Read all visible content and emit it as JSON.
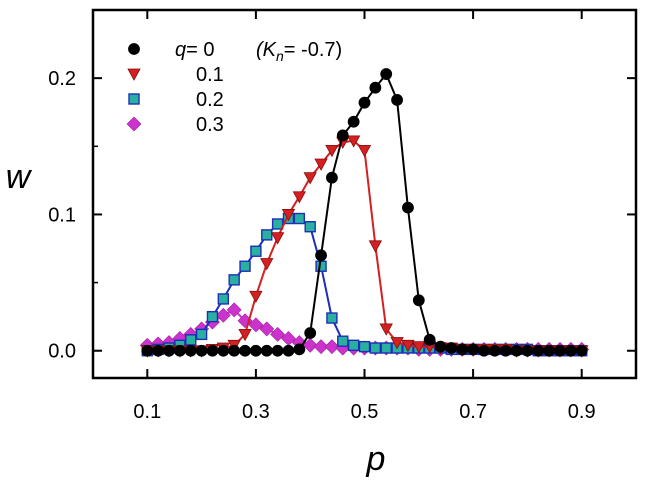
{
  "chart_data": {
    "type": "line",
    "title": "",
    "xlabel": "p",
    "ylabel": "w",
    "xlim": [
      0.0,
      1.0
    ],
    "ylim": [
      -0.02,
      0.25
    ],
    "xticks": [
      0.1,
      0.3,
      0.5,
      0.7,
      0.9
    ],
    "xtick_labels": [
      "0.1",
      "0.3",
      "0.5",
      "0.7",
      "0.9"
    ],
    "yticks": [
      0.0,
      0.1,
      0.2
    ],
    "ytick_labels": [
      "0.0",
      "0.1",
      "0.2"
    ],
    "grid": false,
    "legend_position": "top-left",
    "legend": {
      "q_label": "q",
      "q_eq": "= 0",
      "k_label": "(K",
      "k_sub": "n",
      "k_rest": "= -0.7)"
    },
    "series": [
      {
        "name": "0",
        "label": "",
        "color": "#000000",
        "marker": "circle",
        "x": [
          0.1,
          0.12,
          0.14,
          0.16,
          0.18,
          0.2,
          0.22,
          0.24,
          0.26,
          0.28,
          0.3,
          0.32,
          0.34,
          0.36,
          0.38,
          0.4,
          0.42,
          0.44,
          0.46,
          0.48,
          0.5,
          0.52,
          0.54,
          0.56,
          0.58,
          0.6,
          0.62,
          0.64,
          0.66,
          0.68,
          0.7,
          0.72,
          0.74,
          0.76,
          0.78,
          0.8,
          0.82,
          0.84,
          0.86,
          0.88,
          0.9
        ],
        "values": [
          0,
          0,
          0,
          0,
          0,
          0,
          0,
          0,
          0,
          0,
          0,
          0,
          0,
          0,
          0.001,
          0.013,
          0.07,
          0.127,
          0.158,
          0.168,
          0.182,
          0.193,
          0.203,
          0.184,
          0.105,
          0.037,
          0.008,
          0.003,
          0.002,
          0.001,
          0.001,
          0,
          0,
          0,
          0,
          0,
          0,
          0,
          0,
          0,
          0
        ]
      },
      {
        "name": "0.1",
        "label": "0.1",
        "color": "#d32020",
        "marker": "triangle-down",
        "x": [
          0.1,
          0.12,
          0.14,
          0.16,
          0.18,
          0.2,
          0.22,
          0.24,
          0.26,
          0.28,
          0.3,
          0.32,
          0.34,
          0.36,
          0.38,
          0.4,
          0.42,
          0.44,
          0.46,
          0.48,
          0.5,
          0.52,
          0.54,
          0.56,
          0.58,
          0.6,
          0.62,
          0.64,
          0.66,
          0.68,
          0.7,
          0.72,
          0.74,
          0.76,
          0.78,
          0.8,
          0.82,
          0.84,
          0.86,
          0.88,
          0.9
        ],
        "values": [
          0,
          0,
          0,
          0,
          0,
          0,
          0.001,
          0.002,
          0.004,
          0.012,
          0.04,
          0.064,
          0.083,
          0.1,
          0.113,
          0.127,
          0.137,
          0.147,
          0.153,
          0.154,
          0.147,
          0.077,
          0.016,
          0.006,
          0.004,
          0.003,
          0.003,
          0.002,
          0.002,
          0.001,
          0.001,
          0.001,
          0.001,
          0.001,
          0,
          0,
          0,
          0,
          0,
          0,
          0
        ]
      },
      {
        "name": "0.2",
        "label": "0.2",
        "color": "#2ab0a0",
        "edge": "#1c2fb8",
        "marker": "square",
        "x": [
          0.1,
          0.12,
          0.14,
          0.16,
          0.18,
          0.2,
          0.22,
          0.24,
          0.26,
          0.28,
          0.3,
          0.32,
          0.34,
          0.36,
          0.38,
          0.4,
          0.42,
          0.44,
          0.46,
          0.48,
          0.5,
          0.52,
          0.54,
          0.56,
          0.58,
          0.6,
          0.62,
          0.64,
          0.66,
          0.68,
          0.7,
          0.72,
          0.74,
          0.76,
          0.78,
          0.8,
          0.82,
          0.84,
          0.86,
          0.88,
          0.9
        ],
        "values": [
          0,
          0.001,
          0.002,
          0.004,
          0.008,
          0.012,
          0.025,
          0.038,
          0.052,
          0.062,
          0.073,
          0.085,
          0.093,
          0.097,
          0.097,
          0.091,
          0.062,
          0.024,
          0.007,
          0.004,
          0.003,
          0.002,
          0.002,
          0.002,
          0.002,
          0.002,
          0.002,
          0.002,
          0.001,
          0.001,
          0.001,
          0.001,
          0.001,
          0.001,
          0.001,
          0.001,
          0,
          0,
          0,
          0,
          0
        ]
      },
      {
        "name": "0.3",
        "label": "0.3",
        "color": "#cc33cc",
        "marker": "diamond",
        "x": [
          0.1,
          0.12,
          0.14,
          0.16,
          0.18,
          0.2,
          0.22,
          0.24,
          0.26,
          0.28,
          0.3,
          0.32,
          0.34,
          0.36,
          0.38,
          0.4,
          0.42,
          0.44,
          0.46,
          0.48,
          0.5,
          0.52,
          0.54,
          0.56,
          0.58,
          0.6,
          0.62,
          0.64,
          0.66,
          0.68,
          0.7,
          0.72,
          0.74,
          0.76,
          0.78,
          0.8,
          0.82,
          0.84,
          0.86,
          0.88,
          0.9
        ],
        "values": [
          0.004,
          0.005,
          0.006,
          0.009,
          0.012,
          0.016,
          0.021,
          0.026,
          0.03,
          0.022,
          0.019,
          0.016,
          0.012,
          0.009,
          0.006,
          0.004,
          0.003,
          0.003,
          0.002,
          0.002,
          0.002,
          0.002,
          0.002,
          0.002,
          0.002,
          0.001,
          0.001,
          0.001,
          0.001,
          0.001,
          0.001,
          0.001,
          0.001,
          0.001,
          0.001,
          0.001,
          0.001,
          0.001,
          0.001,
          0.001,
          0.001
        ]
      }
    ]
  }
}
